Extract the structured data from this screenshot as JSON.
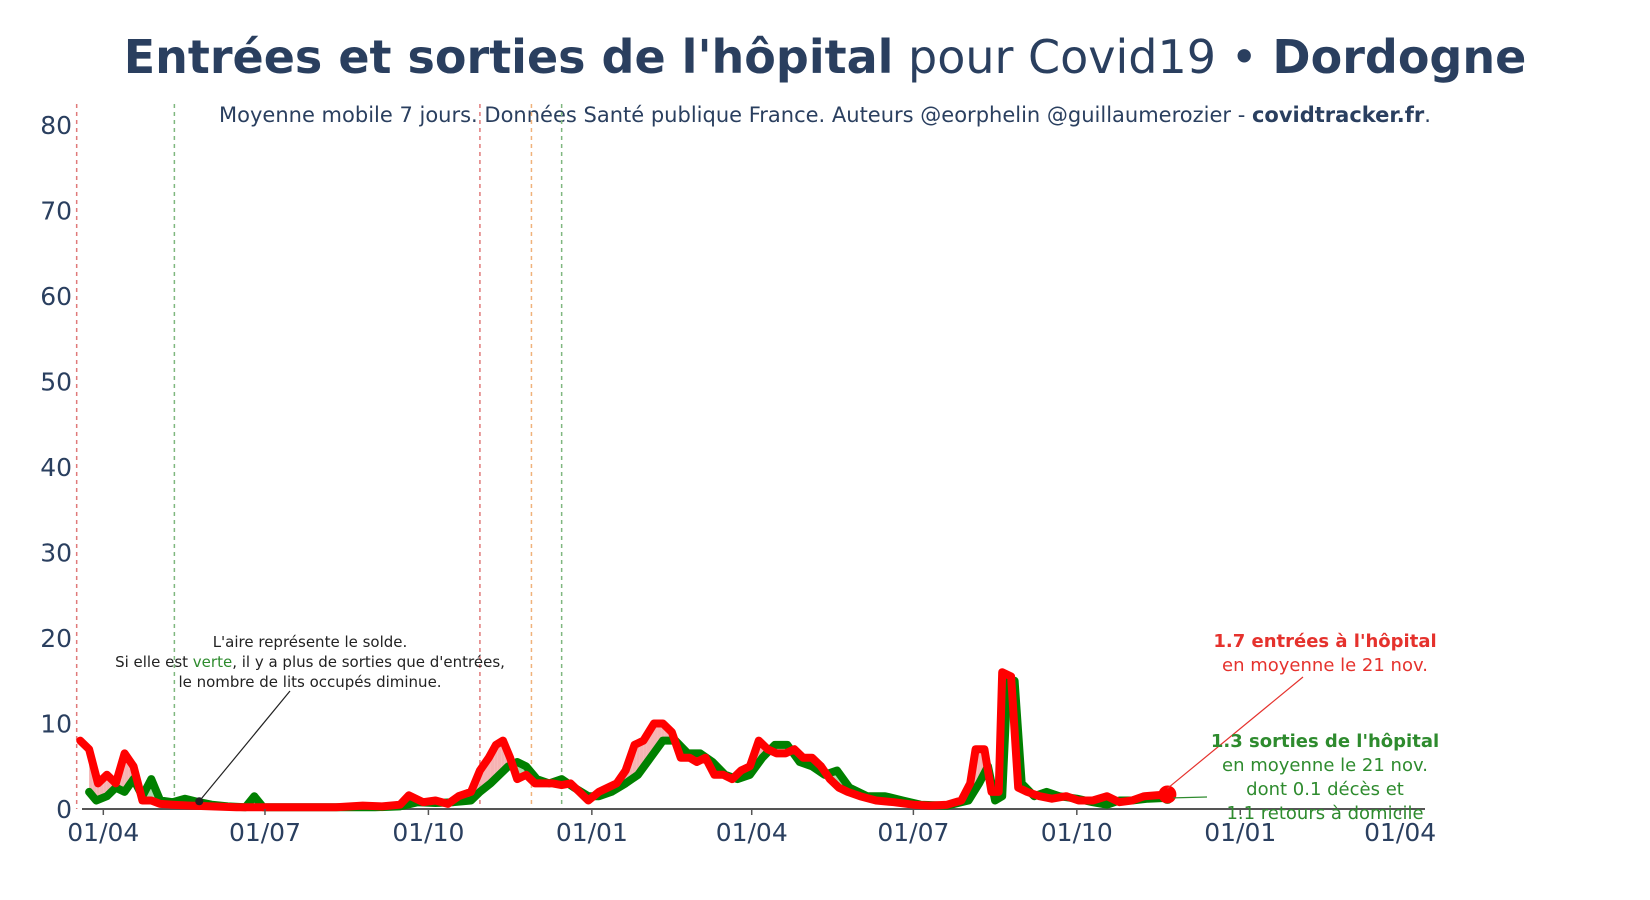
{
  "title": {
    "bold": "Entrées et sorties de l'hôpital",
    "normal": " pour Covid19 • ",
    "region": "Dordogne"
  },
  "subtitle": {
    "text": "Moyenne mobile 7 jours. Données Santé publique France. Auteurs @eorphelin @guillaumerozier - ",
    "site": "covidtracker.fr",
    "end": "."
  },
  "note": {
    "line1": "L'aire représente le solde.",
    "line2a": "Si elle est ",
    "line2green": "verte",
    "line2b": ", il y a plus de sorties que d'entrées,",
    "line3": "le nombre de lits occupés diminue."
  },
  "annotation_in": {
    "bold": "1.7 entrées à l'hôpital",
    "line2": "en moyenne le 21 nov."
  },
  "annotation_out": {
    "bold": "1.3 sorties de l'hôpital",
    "line2": "en moyenne le 21 nov.",
    "line3": "dont 0.1 décès et",
    "line4": "1.1 retours à domicile"
  },
  "colors": {
    "entries": "#ff0000",
    "exits": "#008000",
    "area_positive": "#f4a6a6",
    "area_negative": "#9ed49e",
    "text": "#2a3f5f"
  },
  "chart_data": {
    "type": "line",
    "ylim": [
      0,
      82
    ],
    "yticks": [
      0,
      10,
      20,
      30,
      40,
      50,
      60,
      70,
      80
    ],
    "ytick_labels": [
      "0",
      "10",
      "20",
      "30",
      "40",
      "50",
      "60",
      "70",
      "80"
    ],
    "xlim": [
      "2020-03-20",
      "2022-04-15"
    ],
    "xticks": [
      "2020-04-01",
      "2020-07-01",
      "2020-10-01",
      "2021-01-01",
      "2021-04-01",
      "2021-07-01",
      "2021-10-01",
      "2022-01-01",
      "2022-04-01"
    ],
    "xtick_labels": [
      "01/04",
      "01/07",
      "01/10",
      "01/01",
      "01/04",
      "01/07",
      "01/10",
      "01/01",
      "01/04"
    ],
    "vlines": [
      {
        "date": "2020-03-17",
        "color": "#e07a7a"
      },
      {
        "date": "2020-05-11",
        "color": "#7fb77f"
      },
      {
        "date": "2020-10-30",
        "color": "#e07a7a"
      },
      {
        "date": "2020-11-28",
        "color": "#f0b27a"
      },
      {
        "date": "2020-12-15",
        "color": "#7fb77f"
      }
    ],
    "series": [
      {
        "name": "entrées",
        "color": "#ff0000",
        "points": [
          [
            "2020-03-19",
            8
          ],
          [
            "2020-03-24",
            7
          ],
          [
            "2020-03-29",
            3
          ],
          [
            "2020-04-03",
            4
          ],
          [
            "2020-04-08",
            3
          ],
          [
            "2020-04-13",
            6.5
          ],
          [
            "2020-04-18",
            5
          ],
          [
            "2020-04-23",
            1
          ],
          [
            "2020-04-28",
            1
          ],
          [
            "2020-05-03",
            0.6
          ],
          [
            "2020-05-10",
            0.5
          ],
          [
            "2020-05-20",
            0.4
          ],
          [
            "2020-06-01",
            0.3
          ],
          [
            "2020-06-15",
            0.2
          ],
          [
            "2020-07-01",
            0.2
          ],
          [
            "2020-07-20",
            0.2
          ],
          [
            "2020-08-10",
            0.2
          ],
          [
            "2020-08-25",
            0.4
          ],
          [
            "2020-09-05",
            0.3
          ],
          [
            "2020-09-15",
            0.5
          ],
          [
            "2020-09-20",
            1.6
          ],
          [
            "2020-09-28",
            0.8
          ],
          [
            "2020-10-05",
            1.0
          ],
          [
            "2020-10-12",
            0.6
          ],
          [
            "2020-10-18",
            1.5
          ],
          [
            "2020-10-25",
            2.0
          ],
          [
            "2020-10-30",
            4.5
          ],
          [
            "2020-11-04",
            6.0
          ],
          [
            "2020-11-08",
            7.5
          ],
          [
            "2020-11-12",
            8.0
          ],
          [
            "2020-11-16",
            6.0
          ],
          [
            "2020-11-20",
            3.5
          ],
          [
            "2020-11-25",
            4.0
          ],
          [
            "2020-11-30",
            3.0
          ],
          [
            "2020-12-05",
            3.0
          ],
          [
            "2020-12-10",
            3.0
          ],
          [
            "2020-12-15",
            2.8
          ],
          [
            "2020-12-20",
            3.0
          ],
          [
            "2020-12-25",
            2.0
          ],
          [
            "2020-12-30",
            1.0
          ],
          [
            "2021-01-05",
            2.0
          ],
          [
            "2021-01-10",
            2.5
          ],
          [
            "2021-01-15",
            3.0
          ],
          [
            "2021-01-20",
            4.5
          ],
          [
            "2021-01-25",
            7.5
          ],
          [
            "2021-01-30",
            8.0
          ],
          [
            "2021-02-05",
            10.0
          ],
          [
            "2021-02-10",
            10.0
          ],
          [
            "2021-02-15",
            9.0
          ],
          [
            "2021-02-20",
            6.0
          ],
          [
            "2021-02-25",
            6.0
          ],
          [
            "2021-03-01",
            5.5
          ],
          [
            "2021-03-06",
            6.0
          ],
          [
            "2021-03-11",
            4.0
          ],
          [
            "2021-03-16",
            4.0
          ],
          [
            "2021-03-21",
            3.5
          ],
          [
            "2021-03-26",
            4.5
          ],
          [
            "2021-03-31",
            5.0
          ],
          [
            "2021-04-05",
            8.0
          ],
          [
            "2021-04-10",
            7.0
          ],
          [
            "2021-04-15",
            6.5
          ],
          [
            "2021-04-20",
            6.5
          ],
          [
            "2021-04-25",
            7.0
          ],
          [
            "2021-04-30",
            6.0
          ],
          [
            "2021-05-05",
            6.0
          ],
          [
            "2021-05-10",
            5.0
          ],
          [
            "2021-05-15",
            3.5
          ],
          [
            "2021-05-20",
            2.5
          ],
          [
            "2021-05-25",
            2.0
          ],
          [
            "2021-06-01",
            1.5
          ],
          [
            "2021-06-10",
            1.0
          ],
          [
            "2021-06-20",
            0.8
          ],
          [
            "2021-07-01",
            0.5
          ],
          [
            "2021-07-10",
            0.4
          ],
          [
            "2021-07-20",
            0.5
          ],
          [
            "2021-07-28",
            1.0
          ],
          [
            "2021-08-02",
            3.0
          ],
          [
            "2021-08-05",
            7.0
          ],
          [
            "2021-08-10",
            7.0
          ],
          [
            "2021-08-14",
            2.0
          ],
          [
            "2021-08-18",
            2.0
          ],
          [
            "2021-08-20",
            16.0
          ],
          [
            "2021-08-25",
            15.5
          ],
          [
            "2021-08-29",
            2.5
          ],
          [
            "2021-09-03",
            2.0
          ],
          [
            "2021-09-10",
            1.5
          ],
          [
            "2021-09-17",
            1.2
          ],
          [
            "2021-09-25",
            1.5
          ],
          [
            "2021-10-02",
            1.0
          ],
          [
            "2021-10-10",
            1.0
          ],
          [
            "2021-10-18",
            1.5
          ],
          [
            "2021-10-25",
            0.8
          ],
          [
            "2021-11-01",
            1.0
          ],
          [
            "2021-11-08",
            1.5
          ],
          [
            "2021-11-15",
            1.6
          ],
          [
            "2021-11-21",
            1.7
          ]
        ]
      },
      {
        "name": "sorties",
        "color": "#008000",
        "points": [
          [
            "2020-03-24",
            2.0
          ],
          [
            "2020-03-28",
            1.0
          ],
          [
            "2020-04-03",
            1.5
          ],
          [
            "2020-04-08",
            2.5
          ],
          [
            "2020-04-13",
            2.0
          ],
          [
            "2020-04-18",
            3.5
          ],
          [
            "2020-04-23",
            1.5
          ],
          [
            "2020-04-28",
            3.5
          ],
          [
            "2020-05-03",
            1.0
          ],
          [
            "2020-05-10",
            0.8
          ],
          [
            "2020-05-17",
            1.2
          ],
          [
            "2020-05-25",
            0.8
          ],
          [
            "2020-06-01",
            0.5
          ],
          [
            "2020-06-10",
            0.3
          ],
          [
            "2020-06-20",
            0.2
          ],
          [
            "2020-06-25",
            1.5
          ],
          [
            "2020-06-30",
            0.2
          ],
          [
            "2020-07-20",
            0.2
          ],
          [
            "2020-08-10",
            0.2
          ],
          [
            "2020-09-01",
            0.2
          ],
          [
            "2020-09-15",
            0.3
          ],
          [
            "2020-09-25",
            0.8
          ],
          [
            "2020-10-05",
            0.7
          ],
          [
            "2020-10-15",
            0.8
          ],
          [
            "2020-10-25",
            1.0
          ],
          [
            "2020-10-30",
            2.0
          ],
          [
            "2020-11-05",
            3.0
          ],
          [
            "2020-11-10",
            4.0
          ],
          [
            "2020-11-15",
            5.0
          ],
          [
            "2020-11-20",
            5.5
          ],
          [
            "2020-11-25",
            5.0
          ],
          [
            "2020-12-01",
            3.5
          ],
          [
            "2020-12-08",
            3.0
          ],
          [
            "2020-12-15",
            3.5
          ],
          [
            "2020-12-22",
            2.5
          ],
          [
            "2020-12-30",
            1.5
          ],
          [
            "2021-01-05",
            1.5
          ],
          [
            "2021-01-12",
            2.0
          ],
          [
            "2021-01-20",
            3.0
          ],
          [
            "2021-01-27",
            4.0
          ],
          [
            "2021-02-03",
            6.0
          ],
          [
            "2021-02-10",
            8.0
          ],
          [
            "2021-02-17",
            8.0
          ],
          [
            "2021-02-24",
            6.5
          ],
          [
            "2021-03-03",
            6.5
          ],
          [
            "2021-03-10",
            5.5
          ],
          [
            "2021-03-17",
            4.0
          ],
          [
            "2021-03-24",
            3.5
          ],
          [
            "2021-03-31",
            4.0
          ],
          [
            "2021-04-07",
            6.0
          ],
          [
            "2021-04-14",
            7.5
          ],
          [
            "2021-04-21",
            7.5
          ],
          [
            "2021-04-28",
            5.5
          ],
          [
            "2021-05-05",
            5.0
          ],
          [
            "2021-05-12",
            4.0
          ],
          [
            "2021-05-19",
            4.5
          ],
          [
            "2021-05-26",
            2.5
          ],
          [
            "2021-06-05",
            1.5
          ],
          [
            "2021-06-15",
            1.5
          ],
          [
            "2021-06-25",
            1.0
          ],
          [
            "2021-07-05",
            0.5
          ],
          [
            "2021-07-20",
            0.4
          ],
          [
            "2021-08-01",
            1.0
          ],
          [
            "2021-08-07",
            3.0
          ],
          [
            "2021-08-12",
            5.0
          ],
          [
            "2021-08-16",
            1.0
          ],
          [
            "2021-08-20",
            1.5
          ],
          [
            "2021-08-23",
            15.0
          ],
          [
            "2021-08-27",
            15.0
          ],
          [
            "2021-08-31",
            3.0
          ],
          [
            "2021-09-07",
            1.5
          ],
          [
            "2021-09-14",
            2.0
          ],
          [
            "2021-09-21",
            1.5
          ],
          [
            "2021-10-01",
            1.2
          ],
          [
            "2021-10-10",
            0.8
          ],
          [
            "2021-10-18",
            0.5
          ],
          [
            "2021-10-25",
            1.0
          ],
          [
            "2021-11-01",
            1.0
          ],
          [
            "2021-11-10",
            1.2
          ],
          [
            "2021-11-21",
            1.3
          ]
        ]
      }
    ],
    "last_point": {
      "date": "2021-11-21",
      "entries": 1.7,
      "exits": 1.3
    },
    "note_anchor": {
      "date": "2020-05-25",
      "value": 0.9
    }
  }
}
